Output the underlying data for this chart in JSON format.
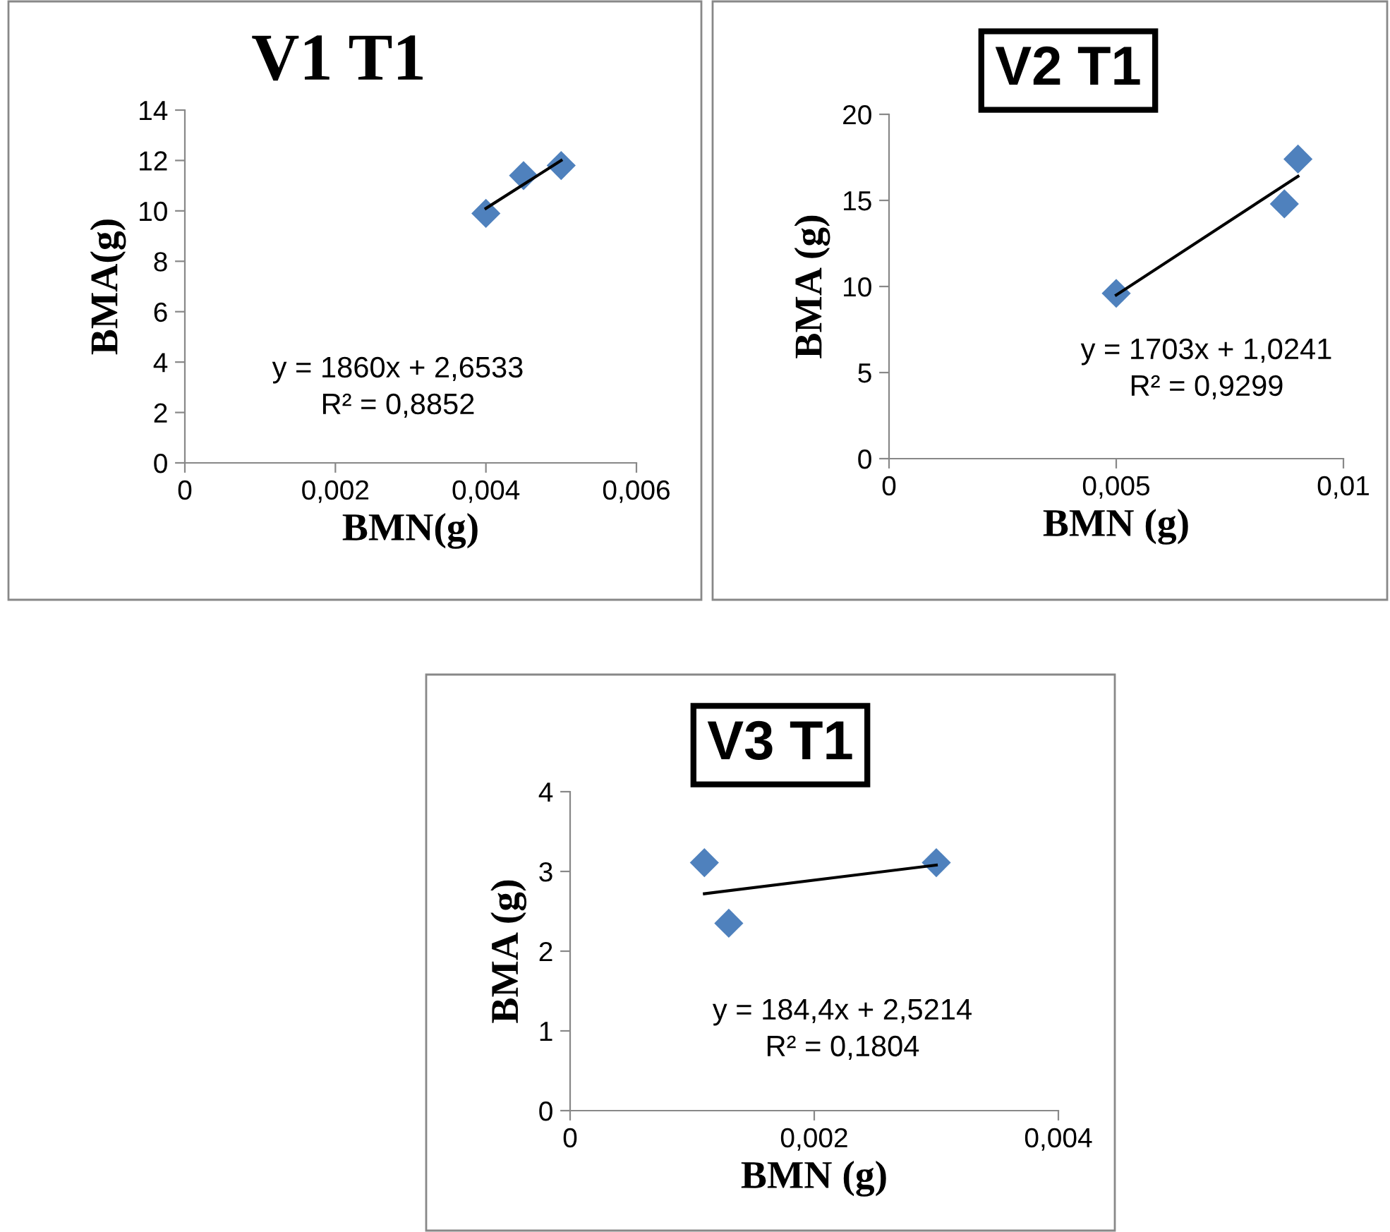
{
  "chart_data": [
    {
      "type": "scatter",
      "title": "V1 T1",
      "xlabel": "BMN(g)",
      "ylabel": "BMA(g)",
      "grid": false,
      "legend": false,
      "xlim": [
        0,
        0.006
      ],
      "xticks": [
        0,
        {
          "value": 0.002,
          "label": "0,002"
        },
        {
          "value": 0.004,
          "label": "0,004"
        },
        {
          "value": 0.006,
          "label": "0,006"
        }
      ],
      "ylim": [
        0,
        14
      ],
      "yticks": [
        0,
        2,
        4,
        6,
        8,
        10,
        12,
        14
      ],
      "series": [
        {
          "color": "#4f81bd",
          "marker": "diamond",
          "x": [
            0.004,
            0.0045,
            0.005
          ],
          "values": [
            9.9,
            11.4,
            11.8
          ]
        },
        {
          "type": "line",
          "marker": "none",
          "color": "#000000",
          "x": [
            0.004,
            0.005
          ],
          "values": [
            10.1,
            12.0
          ]
        }
      ],
      "annotations": [
        "y = 1860x + 2,6533",
        "R² = 0,8852"
      ]
    },
    {
      "type": "scatter",
      "title": "V2 T1",
      "xlabel": "BMN (g)",
      "ylabel": "BMA (g)",
      "grid": false,
      "legend": false,
      "xlim": [
        0,
        0.01
      ],
      "xticks": [
        0,
        {
          "value": 0.005,
          "label": "0,005"
        },
        {
          "value": 0.01,
          "label": "0,01"
        }
      ],
      "ylim": [
        0,
        20
      ],
      "yticks": [
        0,
        5,
        10,
        15,
        20
      ],
      "series": [
        {
          "color": "#4f81bd",
          "marker": "diamond",
          "x": [
            0.005,
            0.0087,
            0.009
          ],
          "values": [
            9.6,
            14.8,
            17.4
          ]
        },
        {
          "type": "line",
          "marker": "none",
          "color": "#000000",
          "x": [
            0.005,
            0.009
          ],
          "values": [
            9.5,
            16.4
          ]
        }
      ],
      "annotations": [
        "y = 1703x + 1,0241",
        "R² = 0,9299"
      ]
    },
    {
      "type": "scatter",
      "title": "V3 T1",
      "xlabel": "BMN (g)",
      "ylabel": "BMA (g)",
      "grid": false,
      "legend": false,
      "xlim": [
        0,
        0.004
      ],
      "xticks": [
        0,
        {
          "value": 0.002,
          "label": "0,002"
        },
        {
          "value": 0.004,
          "label": "0,004"
        }
      ],
      "ylim": [
        0,
        4
      ],
      "yticks": [
        0,
        1,
        2,
        3,
        4
      ],
      "series": [
        {
          "color": "#4f81bd",
          "marker": "diamond",
          "x": [
            0.0011,
            0.0013,
            0.003
          ],
          "values": [
            3.11,
            2.35,
            3.11
          ]
        },
        {
          "type": "line",
          "marker": "none",
          "color": "#000000",
          "x": [
            0.0011,
            0.003
          ],
          "values": [
            2.72,
            3.08
          ]
        }
      ],
      "annotations": [
        "y = 184,4x + 2,5214",
        "R² = 0,1804"
      ]
    }
  ]
}
